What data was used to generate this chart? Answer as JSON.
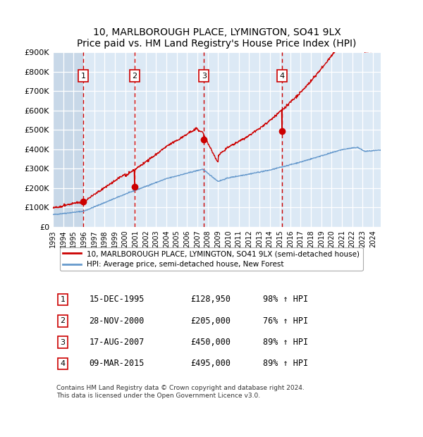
{
  "title": "10, MARLBOROUGH PLACE, LYMINGTON, SO41 9LX",
  "subtitle": "Price paid vs. HM Land Registry's House Price Index (HPI)",
  "ylim": [
    0,
    900000
  ],
  "yticks": [
    0,
    100000,
    200000,
    300000,
    400000,
    500000,
    600000,
    700000,
    800000,
    900000
  ],
  "ytick_labels": [
    "£0",
    "£100K",
    "£200K",
    "£300K",
    "£400K",
    "£500K",
    "£600K",
    "£700K",
    "£800K",
    "£900K"
  ],
  "xlim_start": 1993.0,
  "xlim_end": 2024.75,
  "sale_dates": [
    1995.958,
    2000.912,
    2007.633,
    2015.186
  ],
  "sale_prices": [
    128950,
    205000,
    450000,
    495000
  ],
  "sale_labels": [
    "1",
    "2",
    "3",
    "4"
  ],
  "sale_annotations": [
    [
      "15-DEC-1995",
      "£128,950",
      "98% ↑ HPI"
    ],
    [
      "28-NOV-2000",
      "£205,000",
      "76% ↑ HPI"
    ],
    [
      "17-AUG-2007",
      "£450,000",
      "89% ↑ HPI"
    ],
    [
      "09-MAR-2015",
      "£495,000",
      "89% ↑ HPI"
    ]
  ],
  "line_red_color": "#cc0000",
  "line_blue_color": "#6699cc",
  "dot_color": "#cc0000",
  "vline_color": "#cc0000",
  "hpi_label": "HPI: Average price, semi-detached house, New Forest",
  "property_label": "10, MARLBOROUGH PLACE, LYMINGTON, SO41 9LX (semi-detached house)",
  "footer1": "Contains HM Land Registry data © Crown copyright and database right 2024.",
  "footer2": "This data is licensed under the Open Government Licence v3.0.",
  "background_main": "#dce9f5",
  "background_hatch": "#c8d8e8",
  "background_white": "#ffffff",
  "grid_color": "#ffffff"
}
